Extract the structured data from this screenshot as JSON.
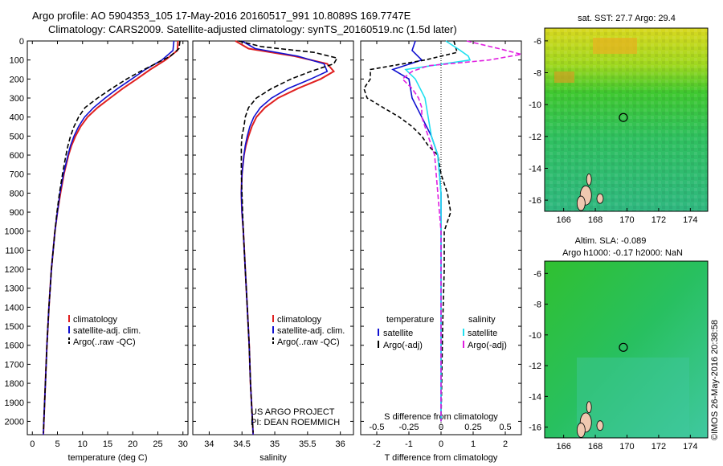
{
  "header": {
    "title_line1": "Argo profile: AO 5904353_105 17-May-2016 20160517_991 10.8089S 169.7747E",
    "title_line2": "Climatology: CARS2009. Satellite-adjusted climatology: synTS_20160519.nc (1.5d later)"
  },
  "panels": {
    "temperature": {
      "xlabel": "temperature (deg C)"
    },
    "salinity": {
      "xlabel": "salinity",
      "credit_line1": "US ARGO PROJECT",
      "credit_line2": "PI: DEAN ROEMMICH"
    },
    "difference": {
      "xlabel_top": "S difference from climatology",
      "xlabel_bottom": "T difference from climatology"
    }
  },
  "legends": {
    "temperature": [
      "climatology",
      "satellite-adj. clim.",
      "Argo(..raw -QC)"
    ],
    "salinity": [
      "climatology",
      "satellite-adj. clim.",
      "Argo(..raw -QC)"
    ],
    "difference": {
      "header_t": "temperature",
      "header_s": "salinity",
      "t_entries": [
        "satellite",
        "Argo(-adj)"
      ],
      "s_entries": [
        "satellite",
        "Argo(-adj)"
      ]
    }
  },
  "maps": {
    "top_title": "sat. SST: 27.7 Argo: 29.4",
    "bottom_title_line1": "Altim. SLA: -0.089",
    "bottom_title_line2": "Argo h1000: -0.17 h2000: NaN",
    "x_ticks": [
      "166",
      "168",
      "170",
      "172",
      "174"
    ],
    "y_ticks": [
      "-6",
      "-8",
      "-10",
      "-12",
      "-14",
      "-16"
    ],
    "float_position": {
      "lon": 169.77,
      "lat": -10.81
    }
  },
  "timestamp": "©IMOS 26-May-2016 20:38:58",
  "colors": {
    "climatology": "#e02020",
    "satellite": "#1010d0",
    "argo": "#000000",
    "sal_sat": "#20e0f0",
    "sal_argo": "#e020e0"
  },
  "chart_data": [
    {
      "type": "line",
      "title": "",
      "xlabel": "temperature (deg C)",
      "ylabel": "",
      "xlim": [
        -1,
        31
      ],
      "ylim": [
        2070,
        0
      ],
      "x_ticks": [
        0,
        5,
        10,
        15,
        20,
        25,
        30
      ],
      "y_ticks": [
        0,
        100,
        200,
        300,
        400,
        500,
        600,
        700,
        800,
        900,
        1000,
        1100,
        1200,
        1300,
        1400,
        1500,
        1600,
        1700,
        1800,
        1900,
        2000
      ],
      "legend": "bottom-left",
      "series": [
        {
          "name": "climatology",
          "depth": [
            0,
            50,
            100,
            150,
            200,
            250,
            300,
            350,
            400,
            450,
            500,
            550,
            600,
            700,
            800,
            900,
            1000,
            1200,
            1400,
            1600,
            1800,
            2000,
            2070
          ],
          "values": [
            29.0,
            28.9,
            26.5,
            23.5,
            20.8,
            18.0,
            15.5,
            13.0,
            11.0,
            9.6,
            8.6,
            7.8,
            7.2,
            6.3,
            5.6,
            5.0,
            4.5,
            3.8,
            3.3,
            2.9,
            2.6,
            2.3,
            2.2
          ]
        },
        {
          "name": "satellite-adj. clim.",
          "depth": [
            0,
            50,
            100,
            150,
            200,
            250,
            300,
            350,
            400,
            450,
            500,
            550,
            600,
            700,
            800,
            900,
            1000,
            1200,
            1400,
            1600,
            1800,
            2000,
            2070
          ],
          "values": [
            28.2,
            28.0,
            25.8,
            22.5,
            19.8,
            17.0,
            14.5,
            12.2,
            10.4,
            9.2,
            8.3,
            7.6,
            7.1,
            6.2,
            5.5,
            5.0,
            4.5,
            3.8,
            3.3,
            2.9,
            2.6,
            2.3,
            2.2
          ]
        },
        {
          "name": "Argo(..raw -QC)",
          "depth": [
            0,
            40,
            80,
            120,
            160,
            200,
            250,
            300,
            350,
            400,
            450,
            500,
            550,
            600,
            700,
            800,
            900,
            1000,
            1200,
            1400,
            1600,
            1800,
            2000,
            2060
          ],
          "values": [
            29.4,
            29.2,
            27.5,
            24.5,
            21.5,
            18.8,
            15.8,
            13.0,
            10.5,
            9.2,
            8.3,
            7.6,
            7.1,
            6.7,
            6.0,
            5.4,
            4.9,
            4.5,
            3.8,
            3.3,
            2.9,
            2.6,
            2.3,
            2.2
          ]
        }
      ]
    },
    {
      "type": "line",
      "title": "",
      "xlabel": "salinity",
      "ylabel": "",
      "xlim": [
        33.75,
        36.2
      ],
      "ylim": [
        2070,
        0
      ],
      "x_ticks": [
        34,
        34.5,
        35,
        35.5,
        36
      ],
      "legend": "bottom-right",
      "series": [
        {
          "name": "climatology",
          "depth": [
            0,
            40,
            80,
            120,
            160,
            200,
            250,
            300,
            350,
            400,
            450,
            500,
            550,
            600,
            700,
            800,
            900,
            1000,
            1200,
            1400,
            1600,
            1800,
            2000,
            2070
          ],
          "values": [
            34.4,
            34.6,
            35.3,
            35.8,
            35.9,
            35.7,
            35.35,
            35.05,
            34.85,
            34.72,
            34.65,
            34.6,
            34.56,
            34.53,
            34.5,
            34.49,
            34.5,
            34.52,
            34.55,
            34.58,
            34.61,
            34.63,
            34.66,
            34.67
          ]
        },
        {
          "name": "satellite-adj. clim.",
          "depth": [
            0,
            40,
            80,
            120,
            160,
            200,
            250,
            300,
            350,
            400,
            450,
            500,
            550,
            600,
            700,
            800,
            900,
            1000,
            1200,
            1400,
            1600,
            1800,
            2000,
            2070
          ],
          "values": [
            34.5,
            34.7,
            35.35,
            35.75,
            35.8,
            35.55,
            35.2,
            34.95,
            34.78,
            34.68,
            34.62,
            34.58,
            34.55,
            34.53,
            34.5,
            34.49,
            34.5,
            34.52,
            34.55,
            34.58,
            34.61,
            34.63,
            34.66,
            34.67
          ]
        },
        {
          "name": "Argo(..raw -QC)",
          "depth": [
            0,
            30,
            60,
            90,
            120,
            160,
            200,
            250,
            300,
            350,
            400,
            450,
            500,
            550,
            600,
            700,
            800,
            900,
            1000,
            1200,
            1400,
            1600,
            1800,
            2000,
            2060
          ],
          "values": [
            34.45,
            34.8,
            35.6,
            35.95,
            35.9,
            35.55,
            35.25,
            34.95,
            34.72,
            34.6,
            34.55,
            34.53,
            34.5,
            34.49,
            34.49,
            34.49,
            34.5,
            34.51,
            34.52,
            34.55,
            34.58,
            34.61,
            34.63,
            34.66,
            34.67
          ]
        }
      ]
    },
    {
      "type": "line",
      "title": "",
      "xlabel": "T difference from climatology",
      "xlabel_top": "S difference from climatology",
      "ylabel": "",
      "xlim": [
        -2.5,
        2.5
      ],
      "ylim": [
        2070,
        0
      ],
      "x_ticks": [
        -2,
        -1,
        0,
        1,
        2
      ],
      "x_ticks_top": [
        "-0.5",
        "-0.25",
        "0",
        "0.25",
        "0.5"
      ],
      "legend": "bottom",
      "series": [
        {
          "name": "temperature satellite",
          "depth": [
            0,
            50,
            100,
            150,
            200,
            300,
            400,
            500,
            600,
            800,
            1000,
            1500,
            2000
          ],
          "values": [
            -0.8,
            -0.9,
            -0.6,
            -1.5,
            -1.0,
            -0.9,
            -0.6,
            -0.3,
            -0.1,
            0.0,
            0.0,
            0.0,
            0.0
          ]
        },
        {
          "name": "temperature Argo(-adj)",
          "depth": [
            0,
            60,
            100,
            150,
            200,
            250,
            300,
            350,
            400,
            450,
            500,
            550,
            600,
            700,
            800,
            900,
            1000,
            1200,
            1500,
            2000
          ],
          "values": [
            0.4,
            0.5,
            -0.5,
            -2.2,
            -2.2,
            -2.4,
            -2.3,
            -1.8,
            -1.3,
            -0.9,
            -0.6,
            -0.4,
            -0.1,
            0.0,
            0.2,
            0.3,
            0.1,
            0.1,
            0.05,
            0.0
          ]
        },
        {
          "name": "salinity satellite",
          "depth": [
            0,
            50,
            80,
            100,
            150,
            200,
            300,
            400,
            500,
            600,
            800,
            1000,
            1500,
            2000
          ],
          "values": [
            0.15,
            0.6,
            0.85,
            0.9,
            -1.1,
            -0.8,
            -0.5,
            -0.4,
            -0.3,
            -0.1,
            0.0,
            0.0,
            0.0,
            0.0
          ]
        },
        {
          "name": "salinity Argo(-adj)",
          "depth": [
            0,
            40,
            70,
            100,
            130,
            160,
            200,
            250,
            300,
            350,
            400,
            450,
            500,
            600,
            800,
            1000,
            1500,
            2000
          ],
          "values": [
            0.8,
            1.8,
            2.5,
            1.5,
            -0.4,
            -0.9,
            -1.2,
            -0.9,
            -0.7,
            -0.6,
            -0.6,
            -0.5,
            -0.4,
            -0.2,
            -0.1,
            0.0,
            0.0,
            0.0
          ]
        }
      ]
    }
  ]
}
